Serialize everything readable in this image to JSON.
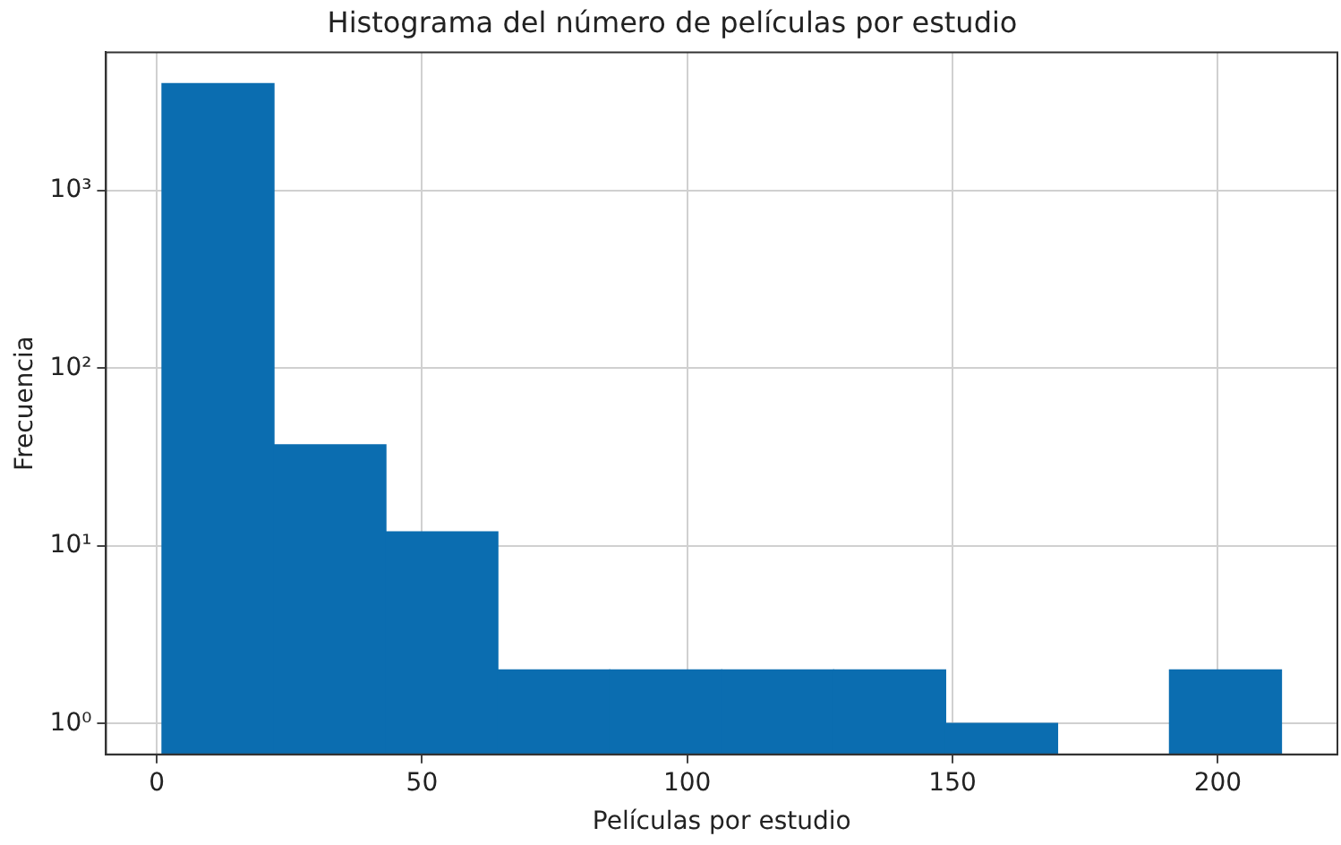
{
  "chart_data": {
    "type": "histogram",
    "title": "Histograma del número de películas por estudio",
    "xlabel": "Películas por estudio",
    "ylabel": "Frecuencia",
    "bins": [
      1,
      22.1,
      43.2,
      64.3,
      85.4,
      106.5,
      127.6,
      148.7,
      169.8,
      190.9,
      212
    ],
    "values": [
      4000,
      37,
      12,
      2,
      2,
      2,
      2,
      1,
      null,
      2
    ],
    "color": "#0b6db0",
    "log": "y",
    "grid": true,
    "xlim": [
      -9.55,
      222.55
    ],
    "xticks": [
      0,
      50,
      100,
      150,
      200
    ],
    "ylim": [
      0.67,
      6000
    ],
    "yticks": [
      {
        "value": 1,
        "label": "10⁰"
      },
      {
        "value": 10,
        "label": "10¹"
      },
      {
        "value": 100,
        "label": "10²"
      },
      {
        "value": 1000,
        "label": "10³"
      }
    ]
  }
}
